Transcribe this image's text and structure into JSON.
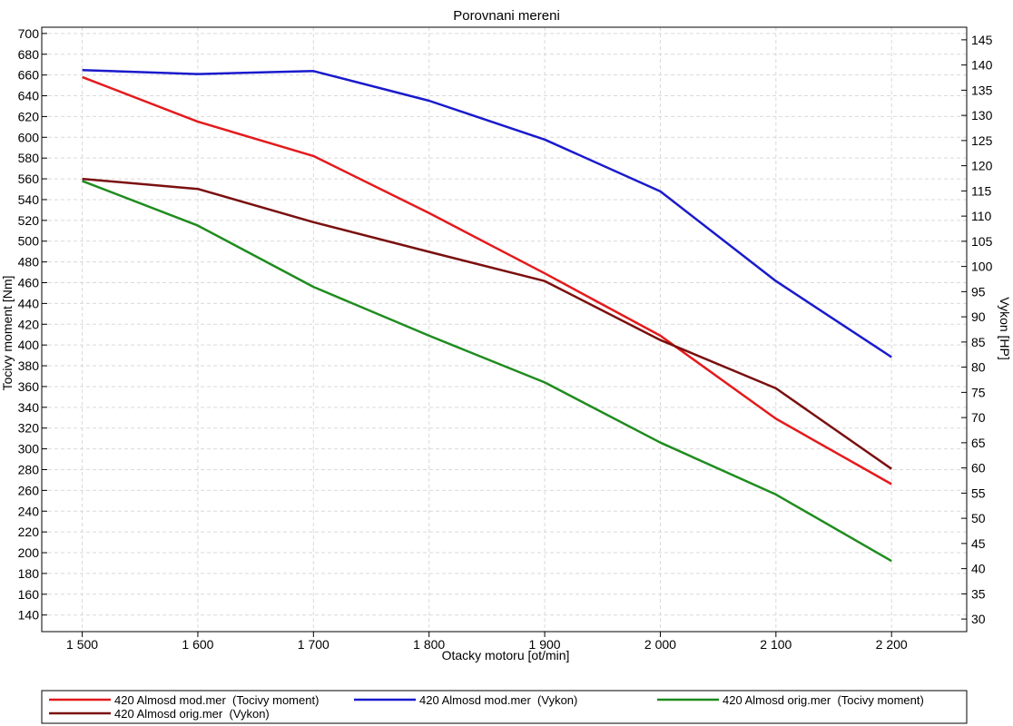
{
  "chart_data": {
    "type": "line",
    "title": "Porovnani mereni",
    "xlabel": "Otacky motoru [ot/min]",
    "ylabel_left": "Tocivy moment [Nm]",
    "ylabel_right": "Vykon [HP]",
    "xlim": [
      1465,
      2265
    ],
    "ylim_left": [
      124,
      706
    ],
    "ylim_right": [
      27.5,
      147.5
    ],
    "x_ticks": [
      1500,
      1600,
      1700,
      1800,
      1900,
      2000,
      2100,
      2200
    ],
    "x_tick_labels": [
      "1 500",
      "1 600",
      "1 700",
      "1 800",
      "1 900",
      "2 000",
      "2 100",
      "2 200"
    ],
    "y_left_ticks": [
      140,
      160,
      180,
      200,
      220,
      240,
      260,
      280,
      300,
      320,
      340,
      360,
      380,
      400,
      420,
      440,
      460,
      480,
      500,
      520,
      540,
      560,
      580,
      600,
      620,
      640,
      660,
      680,
      700
    ],
    "y_right_ticks": [
      30,
      35,
      40,
      45,
      50,
      55,
      60,
      65,
      70,
      75,
      80,
      85,
      90,
      95,
      100,
      105,
      110,
      115,
      120,
      125,
      130,
      135,
      140,
      145
    ],
    "grid": true,
    "legend_position": "bottom",
    "series": [
      {
        "name": "420 Almosd mod.mer  (Tocivy moment)",
        "axis": "left",
        "color": "#e41a1c",
        "x": [
          1500,
          1600,
          1700,
          1800,
          1900,
          2000,
          2100,
          2200
        ],
        "values": [
          658,
          615,
          582,
          527,
          469,
          409,
          329,
          266
        ]
      },
      {
        "name": "420 Almosd mod.mer  (Vykon)",
        "axis": "right",
        "color": "#1a1acc",
        "x": [
          1500,
          1600,
          1700,
          1800,
          1900,
          2000,
          2100,
          2200
        ],
        "values": [
          139,
          138.2,
          138.8,
          132.9,
          125.2,
          114.9,
          97.1,
          82
        ]
      },
      {
        "name": "420 Almosd orig.mer  (Tocivy moment)",
        "axis": "left",
        "color": "#1f8c1f",
        "x": [
          1500,
          1600,
          1700,
          1800,
          1900,
          2000,
          2100,
          2200
        ],
        "values": [
          558,
          515,
          456,
          409,
          364,
          306,
          256,
          192
        ]
      },
      {
        "name": "420 Almosd orig.mer  (Vykon)",
        "axis": "right",
        "color": "#7a0f0f",
        "x": [
          1500,
          1600,
          1700,
          1800,
          1900,
          2000,
          2100,
          2200
        ],
        "values": [
          117.4,
          115.4,
          108.8,
          102.9,
          97.1,
          85.4,
          75.8,
          59.8
        ]
      }
    ]
  }
}
